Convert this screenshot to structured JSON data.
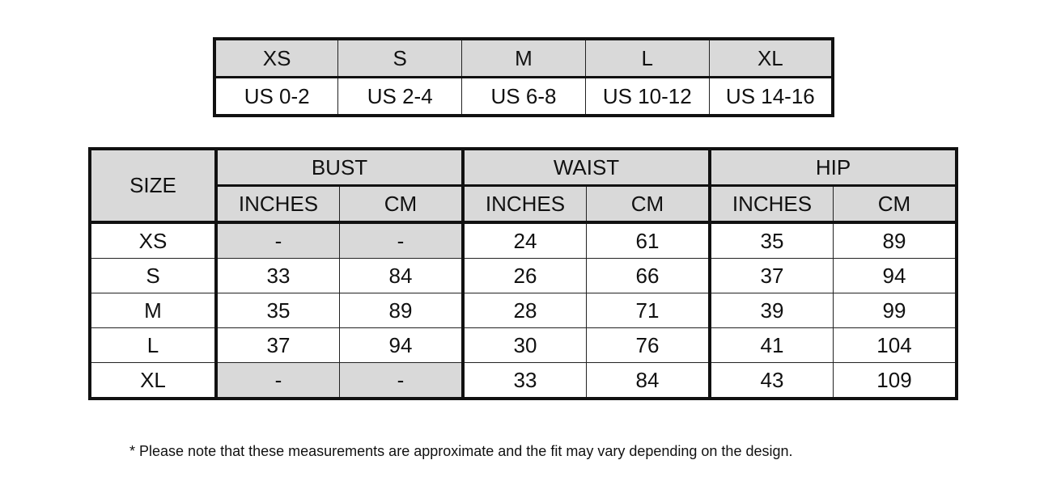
{
  "size_conversion": {
    "headers": [
      "XS",
      "S",
      "M",
      "L",
      "XL"
    ],
    "us_sizes": [
      "US 0-2",
      "US 2-4",
      "US 6-8",
      "US 10-12",
      "US 14-16"
    ]
  },
  "measurements": {
    "size_label": "SIZE",
    "groups": [
      "BUST",
      "WAIST",
      "HIP"
    ],
    "units": [
      "INCHES",
      "CM"
    ],
    "rows": [
      {
        "size": "XS",
        "values": [
          "-",
          "-",
          "24",
          "61",
          "35",
          "89"
        ],
        "bust_unavailable": true
      },
      {
        "size": "S",
        "values": [
          "33",
          "84",
          "26",
          "66",
          "37",
          "94"
        ]
      },
      {
        "size": "M",
        "values": [
          "35",
          "89",
          "28",
          "71",
          "39",
          "99"
        ]
      },
      {
        "size": "L",
        "values": [
          "37",
          "94",
          "30",
          "76",
          "41",
          "104"
        ]
      },
      {
        "size": "XL",
        "values": [
          "-",
          "-",
          "33",
          "84",
          "43",
          "109"
        ],
        "bust_unavailable": true
      }
    ]
  },
  "footnote": "* Please note that these measurements are approximate and the fit may vary depending on the design.",
  "colors": {
    "header_fill": "#d9d9d9",
    "border": "#111111"
  }
}
